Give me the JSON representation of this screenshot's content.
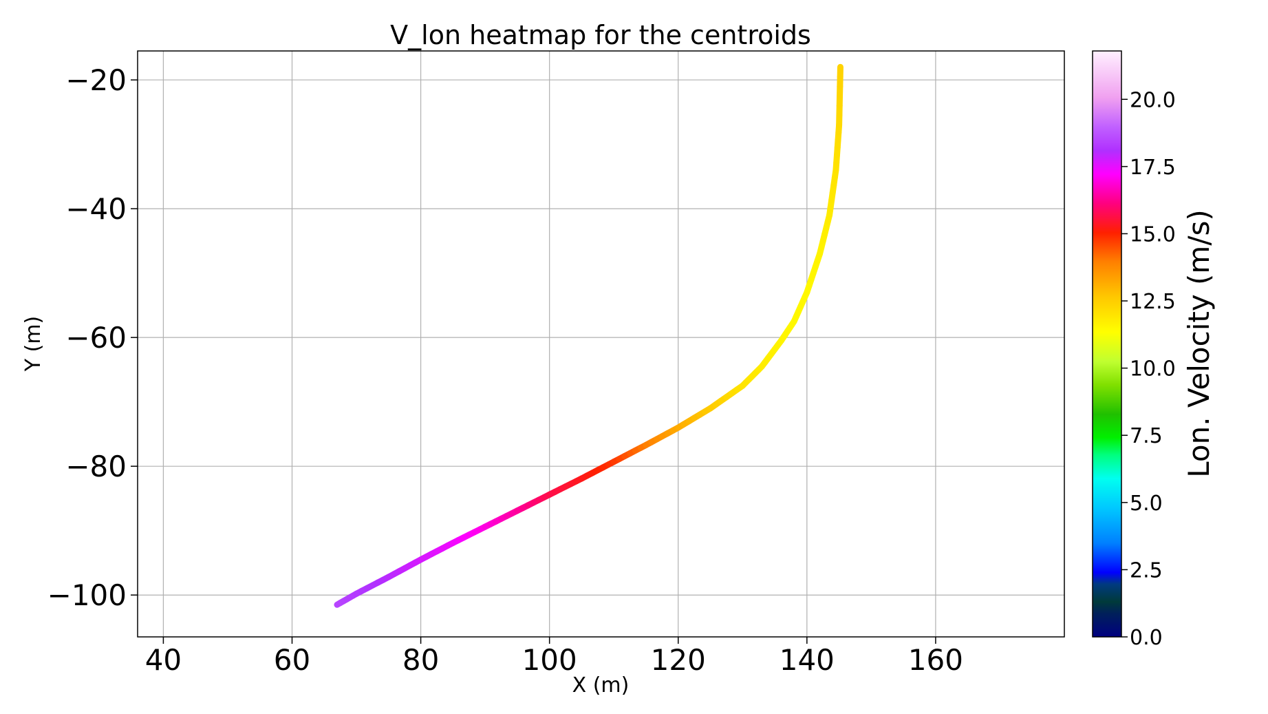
{
  "chart_data": {
    "type": "line",
    "title": "V_lon heatmap for the centroids",
    "xlabel": "X (m)",
    "ylabel": "Y (m)",
    "xlim": [
      36,
      180
    ],
    "ylim": [
      -106.5,
      -15.5
    ],
    "xticks": [
      40,
      60,
      80,
      100,
      120,
      140,
      160
    ],
    "xtick_labels": [
      "40",
      "60",
      "80",
      "100",
      "120",
      "140",
      "160"
    ],
    "yticks": [
      -20,
      -40,
      -60,
      -80,
      -100
    ],
    "ytick_labels": [
      "−20",
      "−40",
      "−60",
      "−80",
      "−100"
    ],
    "grid": true,
    "colorbar": {
      "label": "Lon. Velocity (m/s)",
      "range": [
        0,
        21.8
      ],
      "ticks": [
        0,
        2.5,
        5,
        7.5,
        10,
        12.5,
        15,
        17.5,
        20
      ],
      "tick_labels": [
        "0.0",
        "2.5",
        "5.0",
        "7.5",
        "10.0",
        "12.5",
        "15.0",
        "17.5",
        "20.0"
      ],
      "colormap": "gist_ncar",
      "placement": "right"
    },
    "series": [
      {
        "points": [
          {
            "x": 67,
            "y": -101.5,
            "v": 18.5
          },
          {
            "x": 70,
            "y": -99.8,
            "v": 18.3
          },
          {
            "x": 75,
            "y": -97.2,
            "v": 18.0
          },
          {
            "x": 80,
            "y": -94.5,
            "v": 17.7
          },
          {
            "x": 85,
            "y": -91.9,
            "v": 17.4
          },
          {
            "x": 90,
            "y": -89.4,
            "v": 17.0
          },
          {
            "x": 95,
            "y": -86.9,
            "v": 16.4
          },
          {
            "x": 100,
            "y": -84.4,
            "v": 15.7
          },
          {
            "x": 105,
            "y": -81.9,
            "v": 15.3
          },
          {
            "x": 110,
            "y": -79.3,
            "v": 14.8
          },
          {
            "x": 115,
            "y": -76.7,
            "v": 14.0
          },
          {
            "x": 120,
            "y": -74.0,
            "v": 13.2
          },
          {
            "x": 125,
            "y": -71.0,
            "v": 12.6
          },
          {
            "x": 130,
            "y": -67.5,
            "v": 12.0
          },
          {
            "x": 133,
            "y": -64.5,
            "v": 11.8
          },
          {
            "x": 136,
            "y": -60.5,
            "v": 11.6
          },
          {
            "x": 138,
            "y": -57.5,
            "v": 11.5
          },
          {
            "x": 140,
            "y": -53.0,
            "v": 11.5
          },
          {
            "x": 142,
            "y": -47.0,
            "v": 11.6
          },
          {
            "x": 143.5,
            "y": -41.0,
            "v": 11.8
          },
          {
            "x": 144.5,
            "y": -34.0,
            "v": 12.0
          },
          {
            "x": 145,
            "y": -27.0,
            "v": 12.2
          },
          {
            "x": 145.2,
            "y": -18.0,
            "v": 12.4
          }
        ]
      }
    ]
  }
}
